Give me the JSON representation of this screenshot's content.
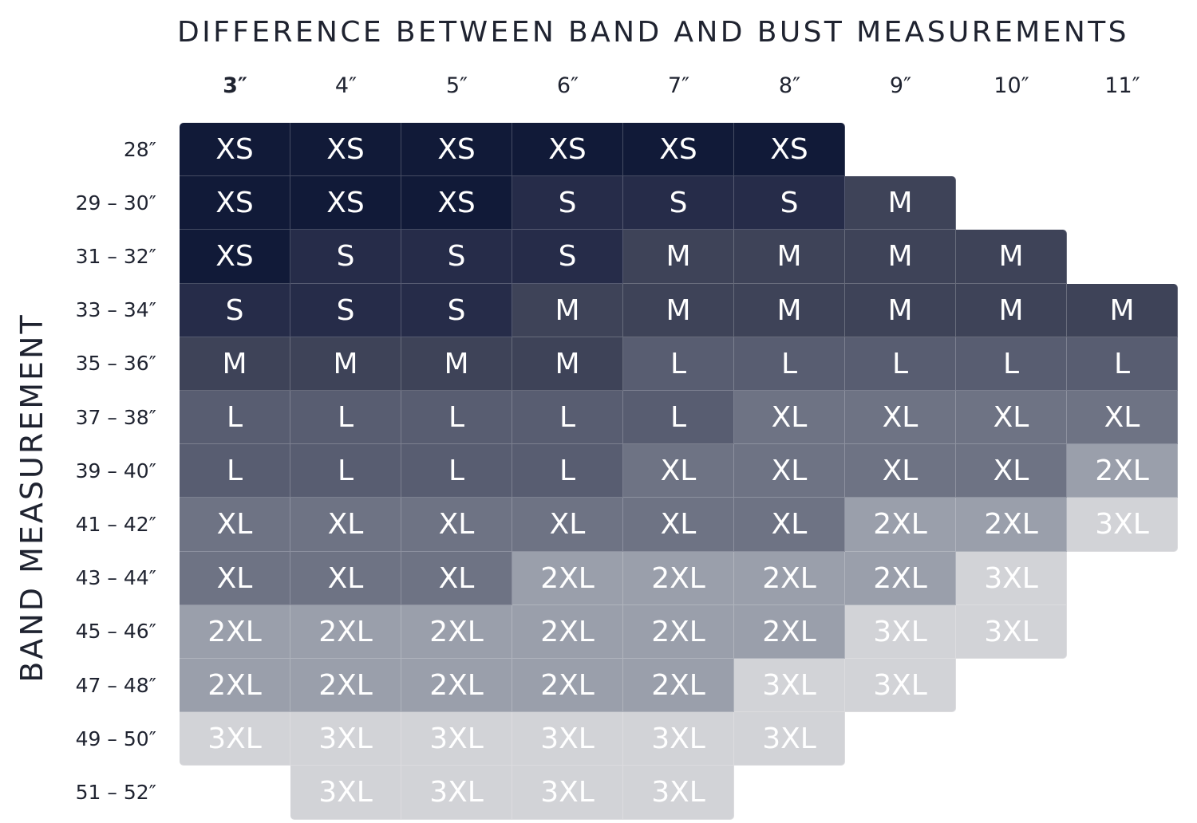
{
  "title": "DIFFERENCE BETWEEN BAND AND BUST MEASUREMENTS",
  "y_axis_title": "BAND MEASUREMENT",
  "columns": [
    "3″",
    "4″",
    "5″",
    "6″",
    "7″",
    "8″",
    "9″",
    "10″",
    "11″"
  ],
  "rows": [
    "28″",
    "29 – 30″",
    "31 – 32″",
    "33 – 34″",
    "35 – 36″",
    "37 – 38″",
    "39 – 40″",
    "41 – 42″",
    "43 – 44″",
    "45 – 46″",
    "47 – 48″",
    "49 – 50″",
    "51 – 52″"
  ],
  "colors": {
    "XS": "#111a38",
    "S": "#262c49",
    "M": "#3e4358",
    "L": "#585d71",
    "XL": "#6e7384",
    "2XL": "#9a9fab",
    "3XL": "#d2d3d7"
  },
  "chart_data": {
    "type": "table",
    "title": "DIFFERENCE BETWEEN BAND AND BUST MEASUREMENTS",
    "xlabel": "DIFFERENCE BETWEEN BAND AND BUST MEASUREMENTS",
    "ylabel": "BAND MEASUREMENT",
    "columns": [
      "3″",
      "4″",
      "5″",
      "6″",
      "7″",
      "8″",
      "9″",
      "10″",
      "11″"
    ],
    "rows": [
      "28″",
      "29 – 30″",
      "31 – 32″",
      "33 – 34″",
      "35 – 36″",
      "37 – 38″",
      "39 – 40″",
      "41 – 42″",
      "43 – 44″",
      "45 – 46″",
      "47 – 48″",
      "49 – 50″",
      "51 – 52″"
    ],
    "cells": [
      [
        "XS",
        "XS",
        "XS",
        "XS",
        "XS",
        "XS",
        null,
        null,
        null
      ],
      [
        "XS",
        "XS",
        "XS",
        "S",
        "S",
        "S",
        "M",
        null,
        null
      ],
      [
        "XS",
        "S",
        "S",
        "S",
        "M",
        "M",
        "M",
        "M",
        null
      ],
      [
        "S",
        "S",
        "S",
        "M",
        "M",
        "M",
        "M",
        "M",
        "M"
      ],
      [
        "M",
        "M",
        "M",
        "M",
        "L",
        "L",
        "L",
        "L",
        "L"
      ],
      [
        "L",
        "L",
        "L",
        "L",
        "L",
        "XL",
        "XL",
        "XL",
        "XL"
      ],
      [
        "L",
        "L",
        "L",
        "L",
        "XL",
        "XL",
        "XL",
        "XL",
        "2XL"
      ],
      [
        "XL",
        "XL",
        "XL",
        "XL",
        "XL",
        "XL",
        "2XL",
        "2XL",
        "3XL"
      ],
      [
        "XL",
        "XL",
        "XL",
        "2XL",
        "2XL",
        "2XL",
        "2XL",
        "3XL",
        null
      ],
      [
        "2XL",
        "2XL",
        "2XL",
        "2XL",
        "2XL",
        "2XL",
        "3XL",
        "3XL",
        null
      ],
      [
        "2XL",
        "2XL",
        "2XL",
        "2XL",
        "2XL",
        "3XL",
        "3XL",
        null,
        null
      ],
      [
        "3XL",
        "3XL",
        "3XL",
        "3XL",
        "3XL",
        "3XL",
        null,
        null,
        null
      ],
      [
        null,
        "3XL",
        "3XL",
        "3XL",
        "3XL",
        null,
        null,
        null,
        null
      ]
    ]
  }
}
